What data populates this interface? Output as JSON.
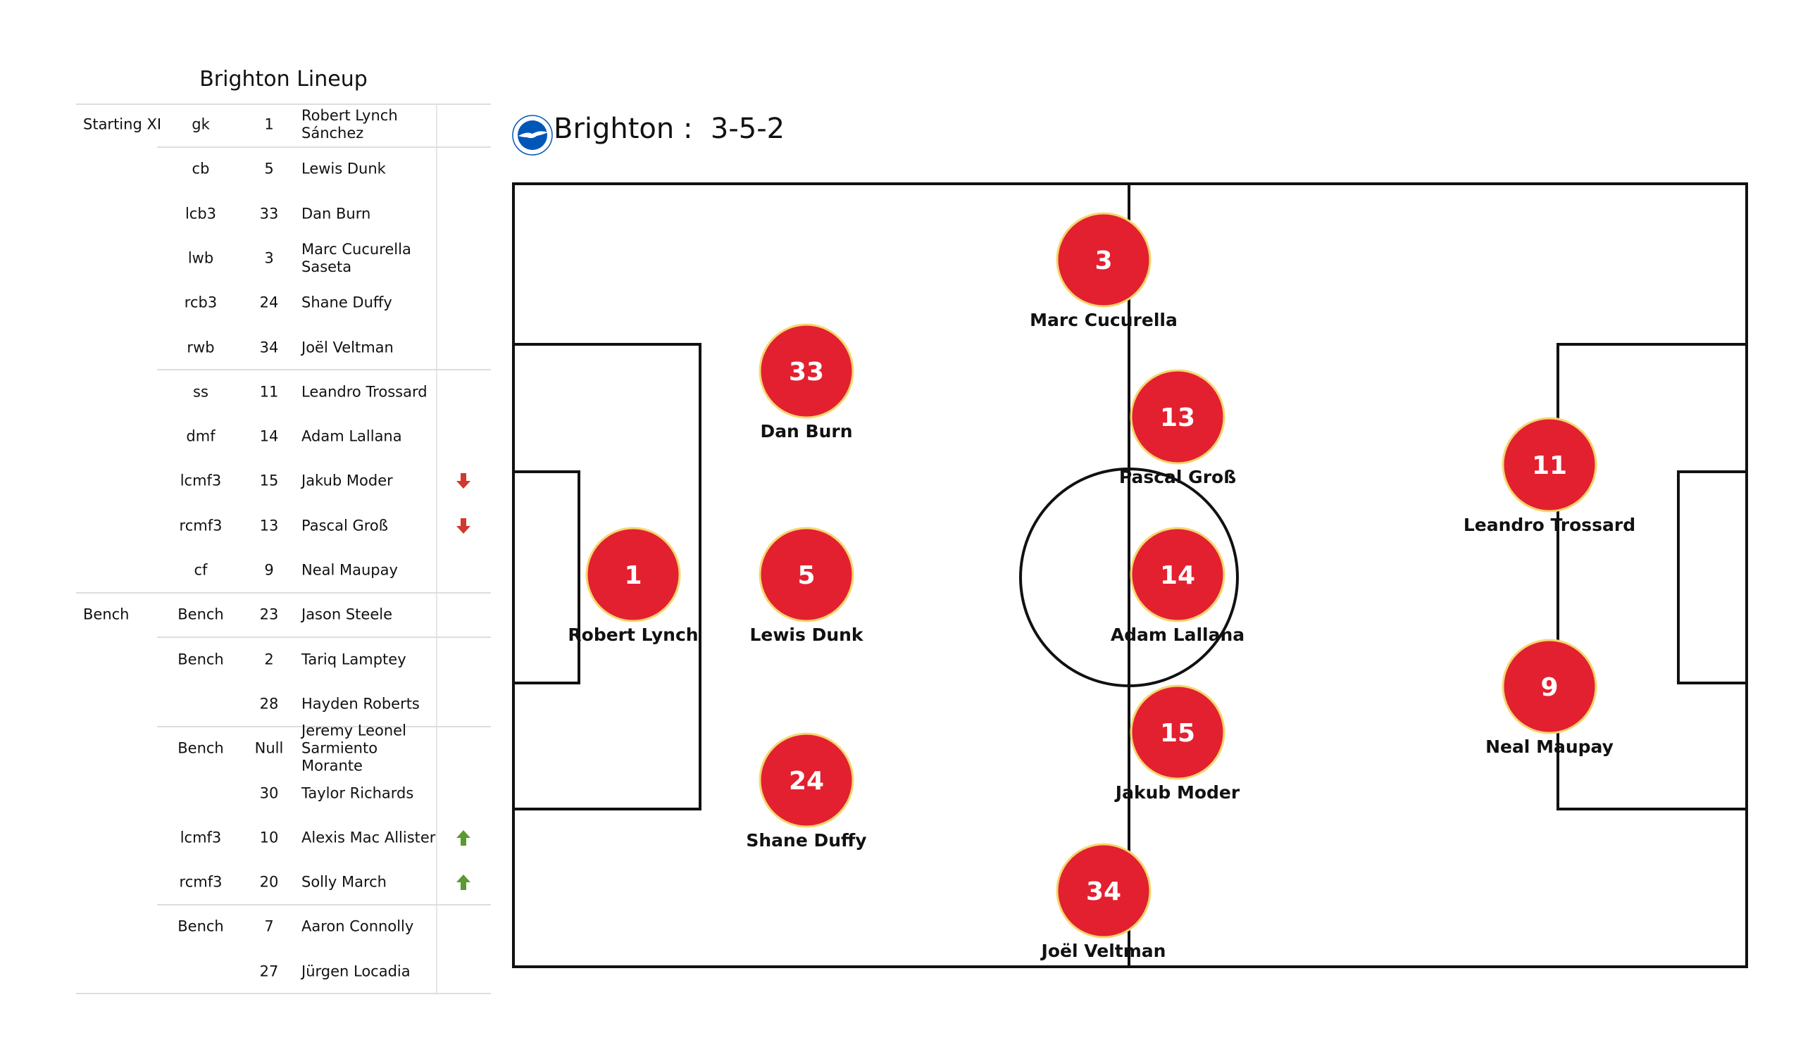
{
  "lineup_table": {
    "title": "Brighton Lineup",
    "rows": [
      {
        "group": "Starting XI",
        "pos": "gk",
        "num": "1",
        "name": "Robert Lynch Sánchez",
        "sub": ""
      },
      {
        "group": "",
        "pos": "cb",
        "num": "5",
        "name": "Lewis Dunk",
        "sub": ""
      },
      {
        "group": "",
        "pos": "lcb3",
        "num": "33",
        "name": "Dan Burn",
        "sub": ""
      },
      {
        "group": "",
        "pos": "lwb",
        "num": "3",
        "name": "Marc Cucurella Saseta",
        "sub": ""
      },
      {
        "group": "",
        "pos": "rcb3",
        "num": "24",
        "name": "Shane Duffy",
        "sub": ""
      },
      {
        "group": "",
        "pos": "rwb",
        "num": "34",
        "name": "Joël Veltman",
        "sub": ""
      },
      {
        "group": "",
        "pos": "ss",
        "num": "11",
        "name": "Leandro Trossard",
        "sub": ""
      },
      {
        "group": "",
        "pos": "dmf",
        "num": "14",
        "name": "Adam Lallana",
        "sub": ""
      },
      {
        "group": "",
        "pos": "lcmf3",
        "num": "15",
        "name": "Jakub Moder",
        "sub": "off"
      },
      {
        "group": "",
        "pos": "rcmf3",
        "num": "13",
        "name": "Pascal Groß",
        "sub": "off"
      },
      {
        "group": "",
        "pos": "cf",
        "num": "9",
        "name": "Neal Maupay",
        "sub": ""
      },
      {
        "group": "Bench",
        "pos": "Bench",
        "num": "23",
        "name": "Jason Steele",
        "sub": ""
      },
      {
        "group": "",
        "pos": "Bench",
        "num": "2",
        "name": "Tariq Lamptey",
        "sub": ""
      },
      {
        "group": "",
        "pos": "",
        "num": "28",
        "name": "Hayden Roberts",
        "sub": ""
      },
      {
        "group": "",
        "pos": "Bench",
        "num": "Null",
        "name": "Jeremy Leonel Sarmiento Morante",
        "sub": ""
      },
      {
        "group": "",
        "pos": "",
        "num": "30",
        "name": "Taylor Richards",
        "sub": ""
      },
      {
        "group": "",
        "pos": "lcmf3",
        "num": "10",
        "name": "Alexis Mac Allister",
        "sub": "on"
      },
      {
        "group": "",
        "pos": "rcmf3",
        "num": "20",
        "name": "Solly March",
        "sub": "on"
      },
      {
        "group": "",
        "pos": "Bench",
        "num": "7",
        "name": "Aaron Connolly",
        "sub": ""
      },
      {
        "group": "",
        "pos": "",
        "num": "27",
        "name": "Jürgen Locadia",
        "sub": ""
      }
    ]
  },
  "pitch": {
    "team": "Brighton",
    "separator": ":",
    "formation": "3-5-2",
    "logo_text": "Brighton & Hove Albion",
    "players": [
      {
        "num": "3",
        "name": "Marc Cucurella"
      },
      {
        "num": "33",
        "name": "Dan Burn"
      },
      {
        "num": "13",
        "name": "Pascal Groß"
      },
      {
        "num": "11",
        "name": "Leandro Trossard"
      },
      {
        "num": "1",
        "name": "Robert Lynch"
      },
      {
        "num": "5",
        "name": "Lewis Dunk"
      },
      {
        "num": "14",
        "name": "Adam Lallana"
      },
      {
        "num": "9",
        "name": "Neal Maupay"
      },
      {
        "num": "15",
        "name": "Jakub Moder"
      },
      {
        "num": "24",
        "name": "Shane Duffy"
      },
      {
        "num": "34",
        "name": "Joël Veltman"
      }
    ]
  },
  "colors": {
    "player_fill": "#e3202f",
    "player_ring": "#f5d76e",
    "sub_off": "#d0392b",
    "sub_on": "#5a9a30",
    "logo_blue": "#0057b8"
  }
}
